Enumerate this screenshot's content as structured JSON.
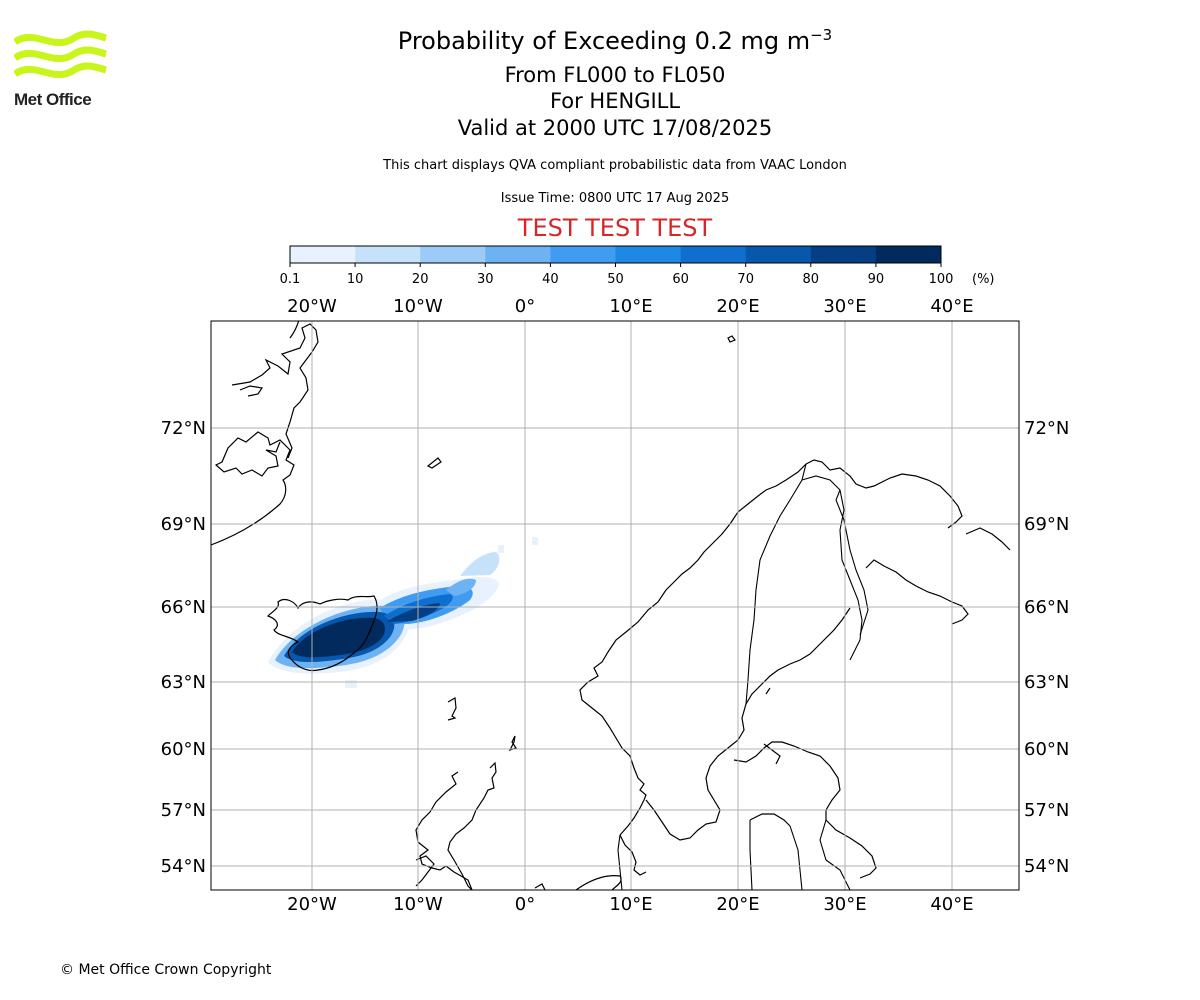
{
  "branding": {
    "logo_text": "Met Office",
    "logo_color": "#c8f51a",
    "copyright": "© Met Office Crown Copyright"
  },
  "title": {
    "main_prefix": "Probability of Exceeding 0.2 mg m",
    "main_exponent": "−3",
    "flight_levels": "From FL000 to FL050",
    "volcano": "For HENGILL",
    "valid_time": "Valid at 2000 UTC 17/08/2025"
  },
  "info": {
    "description": "This chart displays QVA compliant probabilistic data from VAAC London",
    "issue_time": "Issue Time: 0800 UTC 17 Aug 2025",
    "test_banner": "TEST TEST TEST",
    "test_banner_color": "#d62728"
  },
  "colorbar": {
    "unit": "(%)",
    "ticks": [
      "0.1",
      "10",
      "20",
      "30",
      "40",
      "50",
      "60",
      "70",
      "80",
      "90",
      "100"
    ],
    "colors": [
      "#e8f2fe",
      "#c6e2fb",
      "#9dcbf7",
      "#6db3f4",
      "#3f9cf1",
      "#1e88e5",
      "#0f6fcf",
      "#0758ad",
      "#043f85",
      "#022a5c"
    ]
  },
  "map": {
    "lon_labels": [
      "20°W",
      "10°W",
      "0°",
      "10°E",
      "20°E",
      "30°E",
      "40°E"
    ],
    "lat_labels": [
      "72°N",
      "69°N",
      "66°N",
      "63°N",
      "60°N",
      "57°N",
      "54°N"
    ],
    "gridline_color": "#b0b0b0",
    "coastline_color": "#000000"
  }
}
